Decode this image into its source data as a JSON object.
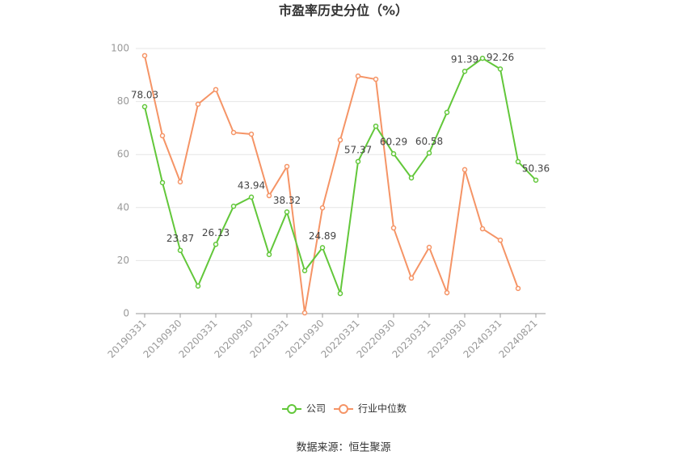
{
  "chart_data": {
    "type": "line",
    "title": "市盈率历史分位（%）",
    "categories": [
      "20190331",
      null,
      "20190930",
      null,
      "20200331",
      null,
      "20200930",
      null,
      "20210331",
      null,
      "20210930",
      null,
      "20220331",
      null,
      "20220930",
      null,
      "20230331",
      null,
      "20230930",
      null,
      "20240331",
      null,
      "20240821"
    ],
    "series": [
      {
        "name": "公司",
        "color": "#62c73a",
        "values": [
          78.03,
          49.4,
          23.87,
          10.4,
          26.13,
          40.5,
          43.94,
          22.3,
          38.32,
          16.2,
          24.89,
          7.6,
          57.37,
          70.7,
          60.29,
          51.2,
          60.58,
          75.9,
          91.39,
          96.3,
          92.26,
          57.3,
          50.36
        ],
        "value_labels": [
          "78.03",
          null,
          "23.87",
          null,
          "26.13",
          null,
          "43.94",
          null,
          "38.32",
          null,
          "24.89",
          null,
          "57.37",
          null,
          "60.29",
          null,
          "60.58",
          null,
          "91.39",
          null,
          "92.26",
          null,
          "50.36"
        ]
      },
      {
        "name": "行业中位数",
        "color": "#f59466",
        "values": [
          97.3,
          67.1,
          49.7,
          79.0,
          84.5,
          68.3,
          67.7,
          44.5,
          55.5,
          0.3,
          39.9,
          65.5,
          89.6,
          88.4,
          32.3,
          13.4,
          25.0,
          7.9,
          54.3,
          32.0,
          27.7,
          9.5,
          null
        ]
      }
    ],
    "ylim": [
      0,
      100
    ],
    "yticks": [
      0,
      20,
      40,
      60,
      80,
      100
    ],
    "grid": true,
    "source": "数据来源：恒生聚源"
  }
}
